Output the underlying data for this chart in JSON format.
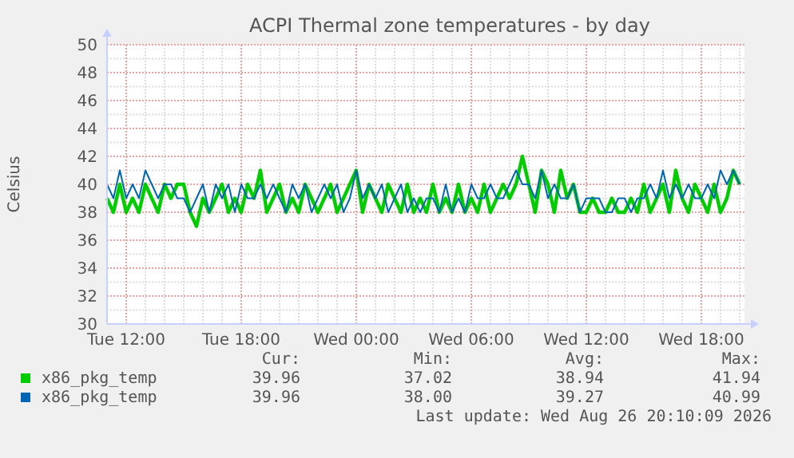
{
  "chart_data": {
    "type": "line",
    "title": "ACPI Thermal zone temperatures - by day",
    "ylabel": "Celsius",
    "x": [
      "2026-08-25T11:00",
      "2026-08-25T11:20",
      "2026-08-25T11:40",
      "2026-08-25T12:00",
      "2026-08-25T12:20",
      "2026-08-25T12:40",
      "2026-08-25T13:00",
      "2026-08-25T13:20",
      "2026-08-25T13:40",
      "2026-08-25T14:00",
      "2026-08-25T14:20",
      "2026-08-25T14:40",
      "2026-08-25T15:00",
      "2026-08-25T15:20",
      "2026-08-25T15:40",
      "2026-08-25T16:00",
      "2026-08-25T16:20",
      "2026-08-25T16:40",
      "2026-08-25T17:00",
      "2026-08-25T17:20",
      "2026-08-25T17:40",
      "2026-08-25T18:00",
      "2026-08-25T18:20",
      "2026-08-25T18:40",
      "2026-08-25T19:00",
      "2026-08-25T19:20",
      "2026-08-25T19:40",
      "2026-08-25T20:00",
      "2026-08-25T20:20",
      "2026-08-25T20:40",
      "2026-08-25T21:00",
      "2026-08-25T21:20",
      "2026-08-25T21:40",
      "2026-08-25T22:00",
      "2026-08-25T22:20",
      "2026-08-25T22:40",
      "2026-08-25T23:00",
      "2026-08-25T23:20",
      "2026-08-25T23:40",
      "2026-08-26T00:00",
      "2026-08-26T00:20",
      "2026-08-26T00:40",
      "2026-08-26T01:00",
      "2026-08-26T01:20",
      "2026-08-26T01:40",
      "2026-08-26T02:00",
      "2026-08-26T02:20",
      "2026-08-26T02:40",
      "2026-08-26T03:00",
      "2026-08-26T03:20",
      "2026-08-26T03:40",
      "2026-08-26T04:00",
      "2026-08-26T04:20",
      "2026-08-26T04:40",
      "2026-08-26T05:00",
      "2026-08-26T05:20",
      "2026-08-26T05:40",
      "2026-08-26T06:00",
      "2026-08-26T06:20",
      "2026-08-26T06:40",
      "2026-08-26T07:00",
      "2026-08-26T07:20",
      "2026-08-26T07:40",
      "2026-08-26T08:00",
      "2026-08-26T08:20",
      "2026-08-26T08:40",
      "2026-08-26T09:00",
      "2026-08-26T09:20",
      "2026-08-26T09:40",
      "2026-08-26T10:00",
      "2026-08-26T10:20",
      "2026-08-26T10:40",
      "2026-08-26T11:00",
      "2026-08-26T11:20",
      "2026-08-26T11:40",
      "2026-08-26T12:00",
      "2026-08-26T12:20",
      "2026-08-26T12:40",
      "2026-08-26T13:00",
      "2026-08-26T13:20",
      "2026-08-26T13:40",
      "2026-08-26T14:00",
      "2026-08-26T14:20",
      "2026-08-26T14:40",
      "2026-08-26T15:00",
      "2026-08-26T15:20",
      "2026-08-26T15:40",
      "2026-08-26T16:00",
      "2026-08-26T16:20",
      "2026-08-26T16:40",
      "2026-08-26T17:00",
      "2026-08-26T17:20",
      "2026-08-26T17:40",
      "2026-08-26T18:00",
      "2026-08-26T18:20",
      "2026-08-26T18:40",
      "2026-08-26T19:00",
      "2026-08-26T19:20",
      "2026-08-26T19:40",
      "2026-08-26T20:00"
    ],
    "series": [
      {
        "name": "x86_pkg_temp",
        "color": "#00cc00",
        "values": [
          39,
          38,
          40,
          38,
          39,
          38,
          40,
          39,
          38,
          40,
          39,
          40,
          40,
          38,
          37,
          39,
          38,
          39,
          40,
          38,
          39,
          38,
          40,
          39,
          41,
          38,
          39,
          40,
          38,
          39,
          38,
          40,
          39,
          38,
          39,
          40,
          38,
          39,
          40,
          41,
          38,
          40,
          39,
          38,
          40,
          39,
          38,
          40,
          38,
          39,
          38,
          40,
          38,
          39,
          38,
          40,
          38,
          39,
          38,
          40,
          38,
          39,
          40,
          39,
          40,
          42,
          40,
          38,
          41,
          40,
          38,
          41,
          39,
          40,
          38,
          38,
          39,
          38,
          38,
          39,
          38,
          38,
          39,
          38,
          40,
          38,
          39,
          40,
          38,
          41,
          39,
          38,
          40,
          39,
          38,
          40,
          38,
          39,
          41,
          40
        ]
      },
      {
        "name": "x86_pkg_temp",
        "color": "#0066b3",
        "values": [
          40,
          39,
          41,
          39,
          40,
          39,
          41,
          40,
          39,
          40,
          40,
          39,
          39,
          38,
          39,
          40,
          38,
          40,
          39,
          40,
          38,
          40,
          39,
          39,
          40,
          39,
          40,
          39,
          38,
          40,
          39,
          40,
          38,
          39,
          40,
          39,
          40,
          38,
          39,
          41,
          39,
          40,
          39,
          40,
          38,
          39,
          40,
          38,
          39,
          38,
          39,
          39,
          38,
          40,
          38,
          39,
          38,
          40,
          39,
          39,
          40,
          39,
          39,
          40,
          41,
          40,
          40,
          39,
          41,
          39,
          40,
          39,
          39,
          40,
          38,
          39,
          39,
          39,
          38,
          38,
          39,
          39,
          38,
          39,
          39,
          40,
          39,
          41,
          39,
          40,
          39,
          40,
          39,
          39,
          40,
          39,
          41,
          40,
          41,
          40
        ]
      }
    ],
    "xlim": [
      "2026-08-25T11:00",
      "2026-08-26T20:15"
    ],
    "xticks": [
      {
        "value": "2026-08-25T12:00",
        "label": "Tue 12:00"
      },
      {
        "value": "2026-08-25T18:00",
        "label": "Tue 18:00"
      },
      {
        "value": "2026-08-26T00:00",
        "label": "Wed 00:00"
      },
      {
        "value": "2026-08-26T06:00",
        "label": "Wed 06:00"
      },
      {
        "value": "2026-08-26T12:00",
        "label": "Wed 12:00"
      },
      {
        "value": "2026-08-26T18:00",
        "label": "Wed 18:00"
      }
    ],
    "ylim": [
      30,
      50
    ],
    "yticks": [
      30,
      32,
      34,
      36,
      38,
      40,
      42,
      44,
      46,
      48,
      50
    ],
    "grid": true,
    "legend": "bottom",
    "annotations": [
      "Cur:",
      "Min:",
      "Avg:",
      "Max:",
      "39.96",
      "37.02",
      "38.94",
      "41.94",
      "39.96",
      "38.00",
      "39.27",
      "40.99",
      "Last update: Wed Aug 26 20:10:09 2026"
    ]
  }
}
